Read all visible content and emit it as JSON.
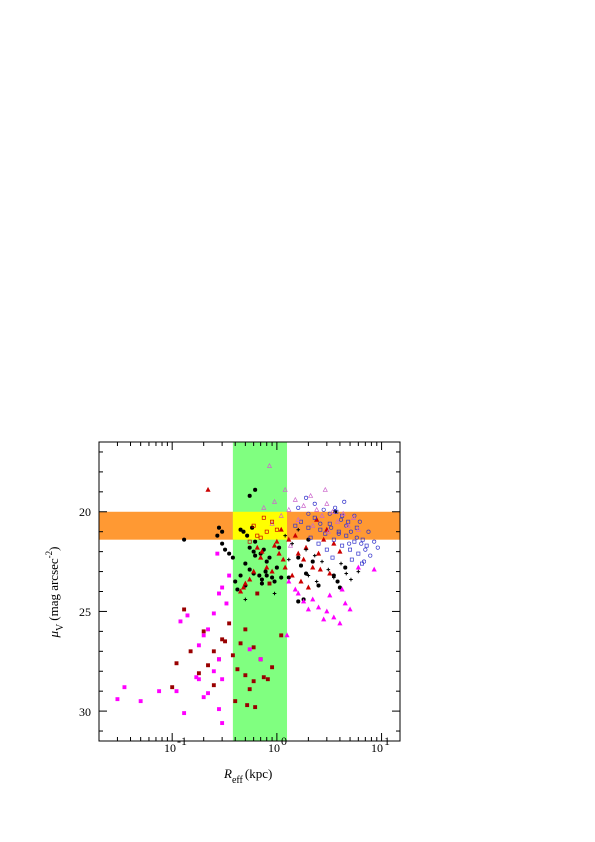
{
  "chart_data": {
    "type": "scatter",
    "title": "",
    "x_axis": {
      "label_symbol": "R",
      "label_subscript": "eff",
      "label_unit": "(kpc)",
      "scale": "log",
      "range": [
        0.02,
        15
      ],
      "tick_labels": [
        {
          "base": "10",
          "exp": "-1",
          "value": 0.1
        },
        {
          "base": "10",
          "exp": "0",
          "value": 1
        },
        {
          "base": "10",
          "exp": "1",
          "value": 10
        }
      ]
    },
    "y_axis": {
      "label_symbol": "μ",
      "label_subscript": "V",
      "label_unit": "(mag arcsec",
      "label_exp": "-2",
      "label_close": ")",
      "scale": "linear",
      "inverted": true,
      "range": [
        16.5,
        31.5
      ],
      "ticks": [
        20,
        25,
        30
      ]
    },
    "bands": [
      {
        "name": "orange-band",
        "orientation": "horizontal",
        "y_range": [
          20.0,
          21.4
        ],
        "color": "#ff9933"
      },
      {
        "name": "green-band",
        "orientation": "vertical",
        "x_range": [
          0.38,
          1.25
        ],
        "color": "#80ff80"
      },
      {
        "name": "yellow-overlap",
        "x_range": [
          0.38,
          1.25
        ],
        "y_range": [
          20.0,
          21.4
        ],
        "color": "#ffff00"
      }
    ],
    "series": [
      {
        "marker": "circle",
        "color": "#000000",
        "filled": true,
        "points": [
          [
            0.55,
            19.2
          ],
          [
            0.62,
            18.9
          ],
          [
            0.45,
            20.9
          ],
          [
            0.48,
            21.0
          ],
          [
            0.52,
            21.2
          ],
          [
            0.55,
            21.8
          ],
          [
            0.6,
            22.0
          ],
          [
            0.62,
            22.2
          ],
          [
            0.7,
            22.1
          ],
          [
            0.75,
            21.9
          ],
          [
            0.8,
            22.5
          ],
          [
            0.85,
            22.3
          ],
          [
            0.5,
            22.6
          ],
          [
            0.55,
            22.9
          ],
          [
            0.6,
            23.1
          ],
          [
            0.68,
            23.2
          ],
          [
            0.72,
            23.4
          ],
          [
            0.78,
            23.0
          ],
          [
            0.9,
            23.3
          ],
          [
            0.95,
            23.5
          ],
          [
            1.0,
            22.8
          ],
          [
            1.1,
            23.3
          ],
          [
            1.05,
            21.8
          ],
          [
            0.38,
            22.3
          ],
          [
            0.4,
            23.5
          ],
          [
            0.42,
            23.9
          ],
          [
            0.5,
            23.7
          ],
          [
            0.45,
            23.2
          ],
          [
            0.28,
            20.8
          ],
          [
            0.3,
            21.0
          ],
          [
            0.27,
            21.2
          ],
          [
            0.3,
            21.6
          ],
          [
            0.32,
            21.9
          ],
          [
            0.35,
            22.1
          ],
          [
            0.13,
            21.4
          ],
          [
            1.3,
            23.3
          ],
          [
            1.6,
            22.3
          ],
          [
            1.7,
            22.7
          ],
          [
            1.9,
            23.1
          ],
          [
            2.2,
            22.5
          ],
          [
            2.5,
            23.7
          ],
          [
            3.5,
            23.2
          ],
          [
            3.8,
            23.5
          ],
          [
            4.0,
            23.8
          ],
          [
            4.5,
            22.8
          ],
          [
            3.6,
            20.0
          ],
          [
            1.8,
            24.4
          ],
          [
            1.6,
            24.5
          ],
          [
            2.0,
            21.4
          ],
          [
            0.62,
            21.5
          ],
          [
            0.58,
            20.8
          ],
          [
            0.72,
            23.6
          ],
          [
            0.8,
            23.2
          ]
        ]
      },
      {
        "marker": "triangle",
        "color": "#cc0000",
        "filled": true,
        "points": [
          [
            0.22,
            18.9
          ],
          [
            1.0,
            21.5
          ],
          [
            1.1,
            20.9
          ],
          [
            1.3,
            21.4
          ],
          [
            1.5,
            21.2
          ],
          [
            1.6,
            22.1
          ],
          [
            1.8,
            22.4
          ],
          [
            1.9,
            21.8
          ],
          [
            2.2,
            22.8
          ],
          [
            2.5,
            22.1
          ],
          [
            2.8,
            21.4
          ],
          [
            3.0,
            20.9
          ],
          [
            3.5,
            21.6
          ],
          [
            4.0,
            22.0
          ],
          [
            1.2,
            22.8
          ],
          [
            1.4,
            23.2
          ],
          [
            2.0,
            23.8
          ],
          [
            0.7,
            22.3
          ],
          [
            0.8,
            22.8
          ],
          [
            0.9,
            23.0
          ],
          [
            0.6,
            23.0
          ],
          [
            0.55,
            23.4
          ],
          [
            0.5,
            23.6
          ],
          [
            0.48,
            23.8
          ],
          [
            0.45,
            24.0
          ],
          [
            0.72,
            22.0
          ],
          [
            0.65,
            21.8
          ],
          [
            0.95,
            21.7
          ],
          [
            1.05,
            22.1
          ],
          [
            1.15,
            22.4
          ],
          [
            2.6,
            22.9
          ],
          [
            3.2,
            23.1
          ],
          [
            1.7,
            23.5
          ],
          [
            2.4,
            20.4
          ]
        ]
      },
      {
        "marker": "triangle",
        "color": "#ff00ff",
        "filled": true,
        "points": [
          [
            1.3,
            23.5
          ],
          [
            1.6,
            24.1
          ],
          [
            1.8,
            24.5
          ],
          [
            2.2,
            24.4
          ],
          [
            2.5,
            24.8
          ],
          [
            3.0,
            25.0
          ],
          [
            3.5,
            25.3
          ],
          [
            4.0,
            25.6
          ],
          [
            4.5,
            24.6
          ],
          [
            5.0,
            24.9
          ],
          [
            6.0,
            22.8
          ],
          [
            8.5,
            22.9
          ],
          [
            3.2,
            24.2
          ],
          [
            2.8,
            25.4
          ],
          [
            1.5,
            23.9
          ],
          [
            1.25,
            26.2
          ],
          [
            4.2,
            23.9
          ],
          [
            2.0,
            24.9
          ]
        ]
      },
      {
        "marker": "square",
        "color": "#990000",
        "filled": true,
        "points": [
          [
            0.7,
            27.4
          ],
          [
            0.6,
            28.5
          ],
          [
            0.55,
            28.9
          ],
          [
            0.5,
            28.2
          ],
          [
            0.42,
            27.9
          ],
          [
            0.38,
            27.2
          ],
          [
            0.45,
            26.6
          ],
          [
            0.3,
            26.4
          ],
          [
            0.25,
            27.0
          ],
          [
            0.22,
            27.7
          ],
          [
            0.2,
            26.0
          ],
          [
            0.18,
            28.1
          ],
          [
            0.15,
            27.0
          ],
          [
            0.13,
            24.9
          ],
          [
            0.11,
            27.6
          ],
          [
            0.1,
            28.8
          ],
          [
            0.25,
            28.7
          ],
          [
            0.28,
            27.4
          ],
          [
            0.32,
            26.5
          ],
          [
            0.35,
            25.6
          ],
          [
            0.4,
            29.5
          ],
          [
            0.52,
            29.7
          ],
          [
            0.62,
            29.8
          ],
          [
            0.75,
            28.3
          ],
          [
            0.82,
            28.4
          ],
          [
            0.9,
            27.8
          ],
          [
            0.85,
            23.6
          ],
          [
            0.65,
            24.1
          ],
          [
            1.1,
            26.2
          ],
          [
            0.6,
            26.8
          ],
          [
            0.5,
            25.9
          ]
        ]
      },
      {
        "marker": "square",
        "color": "#ff00ff",
        "filled": true,
        "points": [
          [
            0.03,
            29.4
          ],
          [
            0.035,
            28.8
          ],
          [
            0.05,
            29.5
          ],
          [
            0.075,
            29.0
          ],
          [
            0.11,
            29.0
          ],
          [
            0.13,
            30.1
          ],
          [
            0.18,
            28.4
          ],
          [
            0.2,
            29.3
          ],
          [
            0.22,
            29.1
          ],
          [
            0.25,
            28.0
          ],
          [
            0.28,
            29.9
          ],
          [
            0.3,
            30.6
          ],
          [
            0.3,
            28.4
          ],
          [
            0.28,
            27.4
          ],
          [
            0.2,
            26.2
          ],
          [
            0.18,
            26.7
          ],
          [
            0.17,
            28.3
          ],
          [
            0.14,
            25.2
          ],
          [
            0.12,
            25.5
          ],
          [
            0.25,
            25.1
          ],
          [
            0.22,
            25.9
          ],
          [
            0.28,
            24.1
          ],
          [
            0.3,
            23.8
          ],
          [
            0.33,
            24.6
          ],
          [
            0.35,
            23.2
          ],
          [
            0.27,
            22.1
          ],
          [
            0.55,
            26.9
          ],
          [
            0.7,
            27.4
          ]
        ]
      },
      {
        "marker": "square",
        "color": "#3333cc",
        "filled": false,
        "points": [
          [
            1.7,
            20.5
          ],
          [
            2.0,
            20.8
          ],
          [
            2.3,
            20.3
          ],
          [
            2.6,
            20.9
          ],
          [
            2.9,
            21.1
          ],
          [
            3.2,
            20.6
          ],
          [
            3.5,
            21.4
          ],
          [
            3.9,
            21.0
          ],
          [
            4.2,
            21.7
          ],
          [
            4.6,
            21.2
          ],
          [
            5.0,
            21.9
          ],
          [
            5.5,
            21.5
          ],
          [
            6.0,
            22.1
          ],
          [
            6.6,
            21.4
          ],
          [
            7.2,
            21.7
          ],
          [
            3.0,
            21.9
          ],
          [
            3.4,
            22.3
          ],
          [
            2.5,
            21.6
          ],
          [
            2.1,
            21.3
          ],
          [
            1.5,
            20.7
          ],
          [
            4.8,
            20.5
          ],
          [
            5.8,
            20.8
          ],
          [
            4.2,
            20.2
          ],
          [
            3.7,
            20.0
          ],
          [
            6.5,
            22.6
          ],
          [
            5.2,
            22.4
          ]
        ]
      },
      {
        "marker": "circle",
        "color": "#3333cc",
        "filled": false,
        "points": [
          [
            1.9,
            19.3
          ],
          [
            2.3,
            19.6
          ],
          [
            2.8,
            19.9
          ],
          [
            3.2,
            20.1
          ],
          [
            3.6,
            19.8
          ],
          [
            4.1,
            20.4
          ],
          [
            4.6,
            20.7
          ],
          [
            5.1,
            21.0
          ],
          [
            5.8,
            21.3
          ],
          [
            6.4,
            21.6
          ],
          [
            7.0,
            21.9
          ],
          [
            7.8,
            22.2
          ],
          [
            8.5,
            21.5
          ],
          [
            9.2,
            21.8
          ],
          [
            5.5,
            20.2
          ],
          [
            6.2,
            20.5
          ],
          [
            4.4,
            19.5
          ],
          [
            3.3,
            20.8
          ],
          [
            2.6,
            20.6
          ],
          [
            3.9,
            21.1
          ],
          [
            4.9,
            21.6
          ],
          [
            6.8,
            22.5
          ],
          [
            7.5,
            21.0
          ],
          [
            2.0,
            20.1
          ],
          [
            1.6,
            19.8
          ]
        ]
      },
      {
        "marker": "triangle",
        "color": "#cc66cc",
        "filled": false,
        "points": [
          [
            0.85,
            17.7
          ],
          [
            1.2,
            18.9
          ],
          [
            1.5,
            19.4
          ],
          [
            1.8,
            19.7
          ],
          [
            2.1,
            19.2
          ],
          [
            2.4,
            19.9
          ],
          [
            2.7,
            20.2
          ],
          [
            3.0,
            19.6
          ],
          [
            3.4,
            20.0
          ],
          [
            3.8,
            20.5
          ],
          [
            4.3,
            20.1
          ],
          [
            4.8,
            20.7
          ],
          [
            5.4,
            20.3
          ],
          [
            6.0,
            20.9
          ],
          [
            1.3,
            19.9
          ],
          [
            1.6,
            20.4
          ],
          [
            2.2,
            20.7
          ],
          [
            0.95,
            19.5
          ],
          [
            1.1,
            20.2
          ],
          [
            0.75,
            19.8
          ],
          [
            0.9,
            20.6
          ],
          [
            3.1,
            21.0
          ],
          [
            2.9,
            18.9
          ],
          [
            1.35,
            21.7
          ]
        ]
      },
      {
        "marker": "plus",
        "color": "#000000",
        "filled": true,
        "points": [
          [
            1.2,
            21.2
          ],
          [
            1.4,
            21.6
          ],
          [
            1.6,
            20.9
          ],
          [
            1.9,
            21.9
          ],
          [
            2.3,
            22.2
          ],
          [
            2.7,
            22.5
          ],
          [
            3.1,
            22.9
          ],
          [
            3.5,
            23.3
          ],
          [
            4.1,
            22.6
          ],
          [
            4.6,
            23.1
          ],
          [
            5.1,
            23.4
          ],
          [
            6.0,
            23.0
          ],
          [
            2.0,
            23.2
          ],
          [
            2.4,
            23.5
          ],
          [
            1.3,
            22.4
          ],
          [
            0.5,
            24.4
          ],
          [
            0.95,
            24.1
          ]
        ]
      },
      {
        "marker": "square",
        "color": "#cc0000",
        "filled": false,
        "points": [
          [
            0.9,
            20.5
          ],
          [
            1.0,
            20.9
          ],
          [
            0.8,
            21.0
          ],
          [
            0.7,
            21.3
          ],
          [
            0.6,
            20.7
          ],
          [
            0.65,
            21.2
          ],
          [
            0.55,
            21.5
          ],
          [
            0.75,
            20.3
          ]
        ]
      }
    ]
  }
}
